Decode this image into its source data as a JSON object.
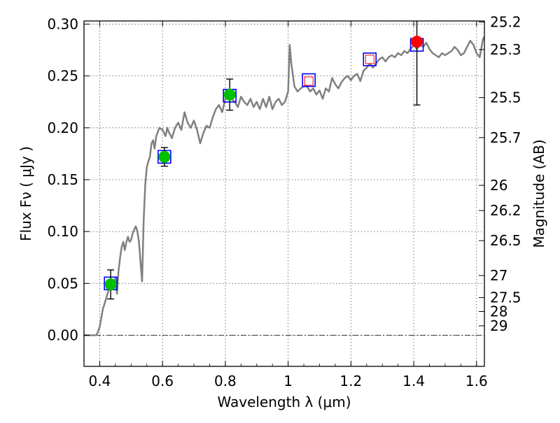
{
  "chart_data": {
    "type": "scatter",
    "xlabel": "Wavelength  λ (μm)",
    "ylabel": "Flux  Fν  ( μJy )",
    "y2label": "Magnitude (AB)",
    "xlim": [
      0.35,
      1.625
    ],
    "ylim": [
      -0.03,
      0.303
    ],
    "grid": true,
    "x_ticks": [
      0.4,
      0.6,
      0.8,
      1.0,
      1.2,
      1.4,
      1.6
    ],
    "x_tick_labels": [
      "0.4",
      "0.6",
      "0.8",
      "1",
      "1.2",
      "1.4",
      "1.6"
    ],
    "y_ticks": [
      0.0,
      0.05,
      0.1,
      0.15,
      0.2,
      0.25,
      0.3
    ],
    "y_tick_labels": [
      "0.00",
      "0.05",
      "0.10",
      "0.15",
      "0.20",
      "0.25",
      "0.30"
    ],
    "mag_ticks": [
      {
        "mag": 25.2,
        "label": "25.2"
      },
      {
        "mag": 25.3,
        "label": "25.3"
      },
      {
        "mag": 25.5,
        "label": "25.5"
      },
      {
        "mag": 25.7,
        "label": "25.7"
      },
      {
        "mag": 26.0,
        "label": "26"
      },
      {
        "mag": 26.2,
        "label": "26.2"
      },
      {
        "mag": 26.5,
        "label": "26.5"
      },
      {
        "mag": 27.0,
        "label": "27"
      },
      {
        "mag": 27.5,
        "label": "27.5"
      },
      {
        "mag": 28.0,
        "label": "28"
      },
      {
        "mag": 29.0,
        "label": "29"
      }
    ],
    "model_spectrum": {
      "color": "#808080",
      "points": [
        [
          0.35,
          0.0
        ],
        [
          0.39,
          0.0
        ],
        [
          0.4,
          0.008
        ],
        [
          0.41,
          0.025
        ],
        [
          0.42,
          0.035
        ],
        [
          0.43,
          0.045
        ],
        [
          0.44,
          0.05
        ],
        [
          0.45,
          0.055
        ],
        [
          0.455,
          0.04
        ],
        [
          0.46,
          0.062
        ],
        [
          0.465,
          0.075
        ],
        [
          0.47,
          0.085
        ],
        [
          0.475,
          0.09
        ],
        [
          0.48,
          0.082
        ],
        [
          0.485,
          0.09
        ],
        [
          0.49,
          0.095
        ],
        [
          0.495,
          0.09
        ],
        [
          0.5,
          0.092
        ],
        [
          0.505,
          0.098
        ],
        [
          0.51,
          0.102
        ],
        [
          0.515,
          0.105
        ],
        [
          0.52,
          0.1
        ],
        [
          0.525,
          0.09
        ],
        [
          0.53,
          0.07
        ],
        [
          0.535,
          0.052
        ],
        [
          0.54,
          0.11
        ],
        [
          0.545,
          0.145
        ],
        [
          0.55,
          0.162
        ],
        [
          0.555,
          0.168
        ],
        [
          0.56,
          0.172
        ],
        [
          0.565,
          0.185
        ],
        [
          0.57,
          0.188
        ],
        [
          0.575,
          0.18
        ],
        [
          0.58,
          0.192
        ],
        [
          0.59,
          0.2
        ],
        [
          0.6,
          0.198
        ],
        [
          0.61,
          0.192
        ],
        [
          0.615,
          0.2
        ],
        [
          0.62,
          0.196
        ],
        [
          0.63,
          0.19
        ],
        [
          0.64,
          0.2
        ],
        [
          0.65,
          0.205
        ],
        [
          0.66,
          0.198
        ],
        [
          0.67,
          0.215
        ],
        [
          0.675,
          0.21
        ],
        [
          0.68,
          0.205
        ],
        [
          0.69,
          0.2
        ],
        [
          0.7,
          0.207
        ],
        [
          0.71,
          0.198
        ],
        [
          0.72,
          0.185
        ],
        [
          0.73,
          0.195
        ],
        [
          0.74,
          0.202
        ],
        [
          0.75,
          0.2
        ],
        [
          0.76,
          0.21
        ],
        [
          0.77,
          0.218
        ],
        [
          0.78,
          0.222
        ],
        [
          0.79,
          0.215
        ],
        [
          0.8,
          0.228
        ],
        [
          0.81,
          0.23
        ],
        [
          0.82,
          0.228
        ],
        [
          0.83,
          0.225
        ],
        [
          0.84,
          0.22
        ],
        [
          0.85,
          0.23
        ],
        [
          0.86,
          0.225
        ],
        [
          0.87,
          0.222
        ],
        [
          0.88,
          0.228
        ],
        [
          0.89,
          0.22
        ],
        [
          0.9,
          0.225
        ],
        [
          0.91,
          0.218
        ],
        [
          0.92,
          0.228
        ],
        [
          0.93,
          0.22
        ],
        [
          0.94,
          0.23
        ],
        [
          0.95,
          0.218
        ],
        [
          0.96,
          0.225
        ],
        [
          0.97,
          0.228
        ],
        [
          0.98,
          0.222
        ],
        [
          0.99,
          0.225
        ],
        [
          1.0,
          0.235
        ],
        [
          1.005,
          0.28
        ],
        [
          1.01,
          0.262
        ],
        [
          1.02,
          0.24
        ],
        [
          1.03,
          0.235
        ],
        [
          1.04,
          0.238
        ],
        [
          1.05,
          0.24
        ],
        [
          1.06,
          0.24
        ],
        [
          1.07,
          0.235
        ],
        [
          1.08,
          0.238
        ],
        [
          1.09,
          0.232
        ],
        [
          1.1,
          0.236
        ],
        [
          1.11,
          0.228
        ],
        [
          1.12,
          0.238
        ],
        [
          1.13,
          0.235
        ],
        [
          1.14,
          0.248
        ],
        [
          1.15,
          0.242
        ],
        [
          1.16,
          0.238
        ],
        [
          1.17,
          0.244
        ],
        [
          1.18,
          0.248
        ],
        [
          1.19,
          0.25
        ],
        [
          1.2,
          0.246
        ],
        [
          1.21,
          0.25
        ],
        [
          1.22,
          0.252
        ],
        [
          1.23,
          0.245
        ],
        [
          1.24,
          0.255
        ],
        [
          1.25,
          0.258
        ],
        [
          1.26,
          0.262
        ],
        [
          1.27,
          0.258
        ],
        [
          1.28,
          0.262
        ],
        [
          1.29,
          0.266
        ],
        [
          1.3,
          0.268
        ],
        [
          1.31,
          0.264
        ],
        [
          1.32,
          0.268
        ],
        [
          1.33,
          0.27
        ],
        [
          1.34,
          0.268
        ],
        [
          1.35,
          0.272
        ],
        [
          1.36,
          0.27
        ],
        [
          1.37,
          0.274
        ],
        [
          1.38,
          0.272
        ],
        [
          1.39,
          0.276
        ],
        [
          1.4,
          0.28
        ],
        [
          1.41,
          0.276
        ],
        [
          1.42,
          0.28
        ],
        [
          1.43,
          0.278
        ],
        [
          1.44,
          0.282
        ],
        [
          1.45,
          0.276
        ],
        [
          1.46,
          0.272
        ],
        [
          1.47,
          0.27
        ],
        [
          1.48,
          0.268
        ],
        [
          1.49,
          0.272
        ],
        [
          1.5,
          0.27
        ],
        [
          1.51,
          0.272
        ],
        [
          1.52,
          0.274
        ],
        [
          1.53,
          0.278
        ],
        [
          1.54,
          0.275
        ],
        [
          1.55,
          0.27
        ],
        [
          1.56,
          0.272
        ],
        [
          1.57,
          0.278
        ],
        [
          1.58,
          0.284
        ],
        [
          1.59,
          0.28
        ],
        [
          1.6,
          0.272
        ],
        [
          1.61,
          0.268
        ],
        [
          1.62,
          0.285
        ],
        [
          1.625,
          0.288
        ]
      ]
    },
    "model_photometry": {
      "marker": "square",
      "edge_color": "#0000ff",
      "points": [
        {
          "x": 0.435,
          "y": 0.05
        },
        {
          "x": 0.606,
          "y": 0.172
        },
        {
          "x": 0.814,
          "y": 0.231
        },
        {
          "x": 1.066,
          "y": 0.246
        },
        {
          "x": 1.26,
          "y": 0.266
        },
        {
          "x": 1.41,
          "y": 0.28
        }
      ]
    },
    "observed_detections": {
      "marker": "circle",
      "color": "#00c000",
      "points": [
        {
          "x": 0.435,
          "y": 0.049,
          "yerr": 0.014
        },
        {
          "x": 0.606,
          "y": 0.172,
          "yerr": 0.009
        },
        {
          "x": 0.814,
          "y": 0.232,
          "yerr": 0.015
        }
      ]
    },
    "observed_upper": {
      "marker": "open-square",
      "color": "#ff0000",
      "points": [
        {
          "x": 1.066,
          "y": 0.245
        },
        {
          "x": 1.26,
          "y": 0.266
        }
      ]
    },
    "observed_red": {
      "marker": "circle",
      "color": "#ff0000",
      "points": [
        {
          "x": 1.41,
          "y": 0.283,
          "yerr_low": 0.061
        }
      ]
    }
  }
}
